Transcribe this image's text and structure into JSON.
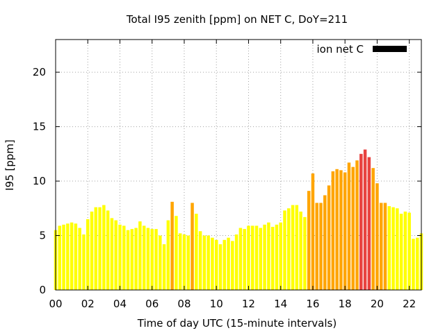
{
  "chart_data": {
    "type": "bar",
    "title": "Total I95 zenith [ppm] on NET C, DoY=211",
    "xlabel": "Time of day UTC (15-minute intervals)",
    "ylabel": "I95 [ppm]",
    "xlim": [
      0,
      22.75
    ],
    "ylim": [
      0,
      23
    ],
    "x_ticks": [
      0,
      2,
      4,
      6,
      8,
      10,
      12,
      14,
      16,
      18,
      20,
      22
    ],
    "x_tick_labels": [
      "00",
      "02",
      "04",
      "06",
      "08",
      "10",
      "12",
      "14",
      "16",
      "18",
      "20",
      "22"
    ],
    "y_ticks": [
      0,
      5,
      10,
      15,
      20
    ],
    "y_tick_labels": [
      "0",
      "5",
      "10",
      "15",
      "20"
    ],
    "grid": true,
    "legend": {
      "label": "ion net C",
      "position": "top-right",
      "color": "#000000"
    },
    "bar_interval_hours": 0.25,
    "series": [
      {
        "start_hour": 0,
        "values": [
          5.5,
          5.9,
          6.0,
          6.1,
          6.2,
          6.1,
          5.7,
          5.1,
          6.5,
          7.2,
          7.6,
          7.6,
          7.8,
          7.3,
          6.6,
          6.4,
          6.0,
          5.9,
          5.5,
          5.6,
          5.7,
          6.3,
          5.9,
          5.7,
          5.6,
          5.6,
          5.0,
          4.2,
          6.4,
          8.1,
          6.8,
          5.2,
          5.1,
          5.0,
          8.0,
          7.0,
          5.4,
          5.0,
          5.0,
          4.8,
          4.6,
          4.2,
          4.6,
          4.8,
          4.5,
          5.1,
          5.7,
          5.6,
          5.9,
          5.9,
          5.9,
          5.7,
          6.0,
          6.2,
          5.8,
          6.0,
          6.2,
          7.3,
          7.5,
          7.8,
          7.8,
          7.2,
          6.7,
          9.1,
          10.7,
          8.0,
          8.0,
          8.7,
          9.6,
          10.9,
          11.1,
          11.0,
          10.8,
          11.7,
          11.3,
          11.9,
          12.5,
          12.9,
          12.2,
          11.2,
          9.8,
          8.0,
          8.0,
          7.7,
          7.6,
          7.5,
          7.0,
          7.2,
          7.1,
          4.7,
          4.8,
          5.2
        ]
      }
    ],
    "color_scale": {
      "yellow": "#ffff00",
      "orange": "#ffa500",
      "red": "#e8423f",
      "orange_from": 8.0,
      "red_from": 12.0
    }
  }
}
